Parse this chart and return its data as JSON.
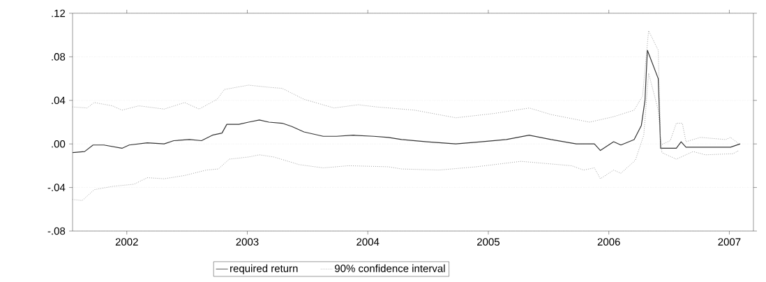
{
  "chart_data": {
    "type": "line",
    "xlim": [
      2001.55,
      2007.2
    ],
    "ylim": [
      -0.08,
      0.12
    ],
    "xticks": [
      2002,
      2003,
      2004,
      2005,
      2006,
      2007
    ],
    "yticks": [
      {
        "value": -0.08,
        "label": "-.08"
      },
      {
        "value": -0.04,
        "label": "-.04"
      },
      {
        "value": 0,
        "label": ".00"
      },
      {
        "value": 0.04,
        "label": ".04"
      },
      {
        "value": 0.08,
        "label": ".08"
      },
      {
        "value": 0.12,
        "label": ".12"
      }
    ],
    "grid": "y",
    "legend": "bottom",
    "marker": "none",
    "series": [
      {
        "name": "required return",
        "color": "#333333",
        "line_style": "solid",
        "x": [
          2001.55,
          2001.65,
          2001.72,
          2001.81,
          2001.96,
          2002.02,
          2002.17,
          2002.31,
          2002.39,
          2002.52,
          2002.62,
          2002.71,
          2002.79,
          2002.83,
          2002.93,
          2003.01,
          2003.1,
          2003.18,
          2003.29,
          2003.37,
          2003.47,
          2003.63,
          2003.74,
          2003.88,
          2004.05,
          2004.17,
          2004.28,
          2004.49,
          2004.73,
          2004.94,
          2005.15,
          2005.34,
          2005.52,
          2005.73,
          2005.88,
          2005.93,
          2006.04,
          2006.1,
          2006.21,
          2006.27,
          2006.3,
          2006.32,
          2006.41,
          2006.43,
          2006.56,
          2006.6,
          2006.64,
          2006.87,
          2007.01,
          2007.09
        ],
        "values": [
          -0.008,
          -0.007,
          -0.001,
          -0.001,
          -0.004,
          -0.001,
          0.001,
          0.0,
          0.003,
          0.004,
          0.003,
          0.008,
          0.01,
          0.018,
          0.018,
          0.02,
          0.022,
          0.02,
          0.019,
          0.016,
          0.011,
          0.007,
          0.007,
          0.008,
          0.007,
          0.006,
          0.004,
          0.002,
          0.0,
          0.002,
          0.004,
          0.008,
          0.004,
          0.0,
          0.0,
          -0.006,
          0.002,
          -0.001,
          0.004,
          0.017,
          0.04,
          0.086,
          0.06,
          -0.004,
          -0.004,
          0.002,
          -0.003,
          -0.003,
          -0.003,
          0.0
        ]
      },
      {
        "name": "90% confidence interval",
        "color": "#8a8a8a",
        "line_style": "dotted",
        "x": [
          2001.55,
          2001.67,
          2001.73,
          2001.88,
          2001.96,
          2002.1,
          2002.31,
          2002.48,
          2002.6,
          2002.75,
          2002.81,
          2003.01,
          2003.18,
          2003.29,
          2003.47,
          2003.72,
          2003.92,
          2004.07,
          2004.39,
          2004.73,
          2005.05,
          2005.34,
          2005.52,
          2005.84,
          2006.04,
          2006.21,
          2006.28,
          2006.33,
          2006.41,
          2006.43,
          2006.51,
          2006.56,
          2006.61,
          2006.64,
          2006.76,
          2006.97,
          2007.01,
          2007.08
        ],
        "values": [
          0.034,
          0.033,
          0.038,
          0.035,
          0.031,
          0.035,
          0.032,
          0.038,
          0.032,
          0.041,
          0.05,
          0.054,
          0.052,
          0.051,
          0.041,
          0.033,
          0.036,
          0.034,
          0.031,
          0.024,
          0.028,
          0.033,
          0.027,
          0.02,
          0.025,
          0.031,
          0.044,
          0.104,
          0.086,
          -0.001,
          0.003,
          0.019,
          0.019,
          0.002,
          0.006,
          0.004,
          0.006,
          0.0
        ]
      },
      {
        "color": "#8a8a8a",
        "line_style": "dotted",
        "x": [
          2001.55,
          2001.63,
          2001.73,
          2001.88,
          2002.06,
          2002.17,
          2002.31,
          2002.48,
          2002.66,
          2002.76,
          2002.85,
          2003.01,
          2003.1,
          2003.22,
          2003.43,
          2003.63,
          2003.84,
          2004.17,
          2004.28,
          2004.59,
          2004.9,
          2005.27,
          2005.69,
          2005.79,
          2005.88,
          2005.93,
          2006.04,
          2006.1,
          2006.22,
          2006.29,
          2006.33,
          2006.41,
          2006.44,
          2006.56,
          2006.7,
          2006.8,
          2007.03,
          2007.08
        ],
        "values": [
          -0.051,
          -0.052,
          -0.042,
          -0.039,
          -0.037,
          -0.031,
          -0.032,
          -0.029,
          -0.024,
          -0.023,
          -0.014,
          -0.012,
          -0.01,
          -0.012,
          -0.019,
          -0.022,
          -0.02,
          -0.021,
          -0.023,
          -0.024,
          -0.021,
          -0.016,
          -0.02,
          -0.024,
          -0.022,
          -0.032,
          -0.024,
          -0.027,
          -0.015,
          0.008,
          0.065,
          0.031,
          -0.008,
          -0.014,
          -0.007,
          -0.01,
          -0.009,
          -0.006
        ]
      }
    ]
  }
}
